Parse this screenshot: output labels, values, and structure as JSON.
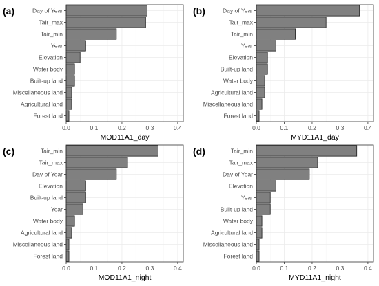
{
  "chart_data": [
    {
      "type": "bar",
      "orientation": "horizontal",
      "panel_label": "(a)",
      "xlabel": "MOD11A1_day",
      "xlim": [
        0,
        0.42
      ],
      "xticks": [
        "0.0",
        "0.1",
        "0.2",
        "0.3",
        "0.4"
      ],
      "grid": true,
      "categories": [
        "Day of Year",
        "Tair_max",
        "Tair_min",
        "Year",
        "Elevation",
        "Water body",
        "Built-up land",
        "Miscellaneous land",
        "Agricultural land",
        "Forest land"
      ],
      "values": [
        0.29,
        0.285,
        0.18,
        0.07,
        0.05,
        0.03,
        0.03,
        0.02,
        0.02,
        0.01
      ]
    },
    {
      "type": "bar",
      "orientation": "horizontal",
      "panel_label": "(b)",
      "xlabel": "MYD11A1_day",
      "xlim": [
        0,
        0.42
      ],
      "xticks": [
        "0.0",
        "0.1",
        "0.2",
        "0.3",
        "0.4"
      ],
      "grid": true,
      "categories": [
        "Day of Year",
        "Tair_max",
        "Tair_min",
        "Year",
        "Elevation",
        "Built-up land",
        "Water body",
        "Agricultural land",
        "Miscellaneous land",
        "Forest land"
      ],
      "values": [
        0.37,
        0.25,
        0.14,
        0.07,
        0.04,
        0.04,
        0.03,
        0.03,
        0.02,
        0.01
      ]
    },
    {
      "type": "bar",
      "orientation": "horizontal",
      "panel_label": "(c)",
      "xlabel": "MOD11A1_night",
      "xlim": [
        0,
        0.42
      ],
      "xticks": [
        "0.0",
        "0.1",
        "0.2",
        "0.3",
        "0.4"
      ],
      "grid": true,
      "categories": [
        "Tair_min",
        "Tair_max",
        "Day of Year",
        "Elevation",
        "Built-up land",
        "Year",
        "Water body",
        "Agricultural land",
        "Miscellaneous land",
        "Forest land"
      ],
      "values": [
        0.33,
        0.22,
        0.18,
        0.07,
        0.07,
        0.06,
        0.03,
        0.02,
        0.01,
        0.01
      ]
    },
    {
      "type": "bar",
      "orientation": "horizontal",
      "panel_label": "(d)",
      "xlabel": "MYD11A1_night",
      "xlim": [
        0,
        0.42
      ],
      "xticks": [
        "0.0",
        "0.1",
        "0.2",
        "0.3",
        "0.4"
      ],
      "grid": true,
      "categories": [
        "Tair_min",
        "Tair_max",
        "Day of Year",
        "Elevation",
        "Year",
        "Built-up land",
        "Water body",
        "Agricultural land",
        "Miscellaneous land",
        "Forest land"
      ],
      "values": [
        0.36,
        0.22,
        0.19,
        0.07,
        0.05,
        0.05,
        0.02,
        0.02,
        0.01,
        0.01
      ]
    }
  ]
}
